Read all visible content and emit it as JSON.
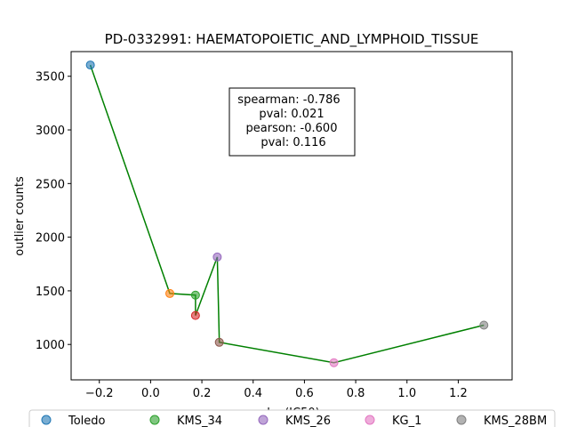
{
  "chart_data": {
    "type": "scatter",
    "title": "PD-0332991: HAEMATOPOIETIC_AND_LYMPHOID_TISSUE",
    "xlabel": "log(IC50)",
    "ylabel": "outlier counts",
    "xlim": [
      -0.31,
      1.41
    ],
    "ylim": [
      670,
      3730
    ],
    "xticks": [
      "-0.2",
      "0.0",
      "0.2",
      "0.4",
      "0.6",
      "0.8",
      "1.0",
      "1.2"
    ],
    "yticks": [
      "1000",
      "1500",
      "2000",
      "2500",
      "3000",
      "3500"
    ],
    "points": [
      {
        "x": -0.235,
        "y": 3605,
        "color": "#1f77b4"
      },
      {
        "x": 0.075,
        "y": 1475,
        "color": "#ff7f0e"
      },
      {
        "x": 0.175,
        "y": 1460,
        "color": "#2ca02c"
      },
      {
        "x": 0.175,
        "y": 1270,
        "color": "#d62728"
      },
      {
        "x": 0.26,
        "y": 1815,
        "color": "#9467bd"
      },
      {
        "x": 0.268,
        "y": 1020,
        "color": "#8c564b"
      },
      {
        "x": 0.715,
        "y": 830,
        "color": "#e377c2"
      },
      {
        "x": 1.3,
        "y": 1180,
        "color": "#7f7f7f"
      }
    ],
    "line": {
      "color": "#008000",
      "x": [
        -0.235,
        0.075,
        0.175,
        0.175,
        0.26,
        0.268,
        0.715,
        1.3
      ],
      "y": [
        3605,
        1475,
        1460,
        1270,
        1815,
        1020,
        830,
        1180
      ]
    },
    "annotation": [
      "spearman: -0.786",
      "pval: 0.021",
      "pearson: -0.600",
      "pval: 0.116"
    ],
    "legend": {
      "placement": "bottom",
      "entries": [
        {
          "label": "Toledo",
          "color": "#1f77b4"
        },
        {
          "label": "KMS_34",
          "color": "#2ca02c"
        },
        {
          "label": "KMS_26",
          "color": "#9467bd"
        },
        {
          "label": "KG_1",
          "color": "#e377c2"
        },
        {
          "label": "KMS_28BM",
          "color": "#7f7f7f"
        }
      ]
    }
  }
}
